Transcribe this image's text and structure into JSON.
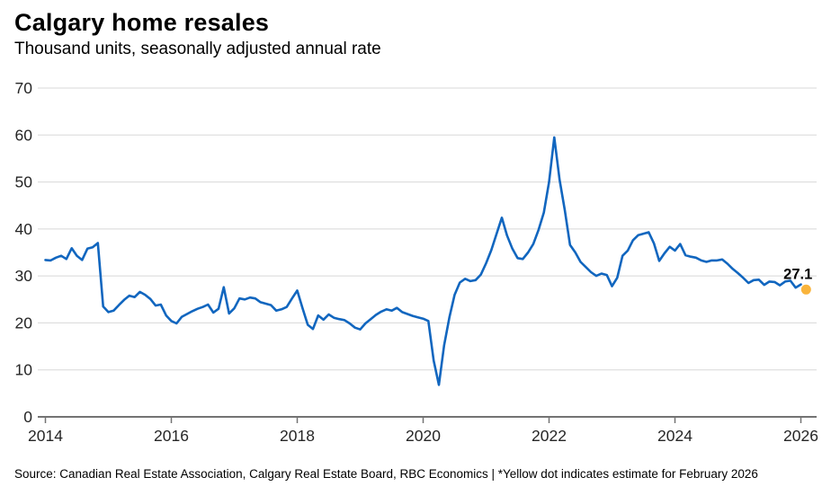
{
  "header": {
    "title": "Calgary home resales",
    "subtitle": "Thousand units, seasonally adjusted annual rate"
  },
  "footer": {
    "source": "Source: Canadian Real Estate Association, Calgary Real Estate Board, RBC Economics | *Yellow dot indicates estimate for February 2026"
  },
  "colors": {
    "line": "#1166bf",
    "estimate_dot": "#f9b43c",
    "gridline": "#d8d8d8",
    "axis": "#737373",
    "tick_label": "#262626",
    "annotation": "#000000"
  },
  "chart_data": {
    "type": "line",
    "title": "Calgary home resales",
    "ylabel": "Thousand units, seasonally adjusted annual rate",
    "ylim": [
      0,
      70
    ],
    "yticks": [
      0,
      10,
      20,
      30,
      40,
      50,
      60,
      70
    ],
    "xticks": [
      2014,
      2016,
      2018,
      2020,
      2022,
      2024,
      2026
    ],
    "grid": "horizontal",
    "legend_position": "none",
    "frequency": "monthly",
    "x_start": "2014-01",
    "x_end": "2026-01",
    "series": [
      {
        "name": "Calgary home resales (thousand units, SAAR)",
        "values": [
          33.4,
          33.3,
          33.9,
          34.3,
          33.6,
          35.9,
          34.3,
          33.4,
          35.8,
          36.1,
          37.0,
          23.5,
          22.3,
          22.6,
          23.8,
          24.9,
          25.8,
          25.5,
          26.6,
          26.0,
          25.1,
          23.7,
          23.9,
          21.6,
          20.4,
          19.9,
          21.3,
          21.9,
          22.5,
          23.0,
          23.4,
          23.9,
          22.2,
          23.0,
          27.6,
          22.0,
          23.1,
          25.2,
          25.0,
          25.4,
          25.2,
          24.4,
          24.1,
          23.8,
          22.6,
          22.9,
          23.4,
          25.2,
          26.9,
          23.2,
          19.6,
          18.7,
          21.6,
          20.7,
          21.8,
          21.1,
          20.8,
          20.6,
          19.9,
          19.0,
          18.6,
          19.9,
          20.8,
          21.7,
          22.4,
          22.9,
          22.6,
          23.2,
          22.3,
          21.9,
          21.5,
          21.2,
          20.9,
          20.4,
          12.0,
          6.8,
          15.2,
          21.2,
          26.0,
          28.6,
          29.4,
          28.9,
          29.1,
          30.3,
          32.7,
          35.5,
          39.0,
          42.4,
          38.6,
          35.8,
          33.8,
          33.6,
          35.0,
          36.8,
          39.8,
          43.5,
          50.0,
          59.5,
          50.5,
          44.0,
          36.6,
          35.0,
          33.0,
          31.9,
          30.8,
          30.0,
          30.5,
          30.2,
          27.8,
          29.6,
          34.3,
          35.4,
          37.6,
          38.7,
          39.0,
          39.3,
          36.9,
          33.2,
          34.8,
          36.2,
          35.4,
          36.8,
          34.4,
          34.1,
          33.9,
          33.3,
          33.0,
          33.3,
          33.3,
          33.5,
          32.6,
          31.5,
          30.6,
          29.6,
          28.5,
          29.1,
          29.2,
          28.1,
          28.8,
          28.7,
          28.0,
          28.8,
          29.0,
          27.5,
          28.2
        ]
      }
    ],
    "estimate": {
      "period": "2026-02",
      "value": 27.1,
      "label": "27.1",
      "marker": "yellow-dot",
      "note": "*Yellow dot indicates estimate for February 2026"
    }
  }
}
